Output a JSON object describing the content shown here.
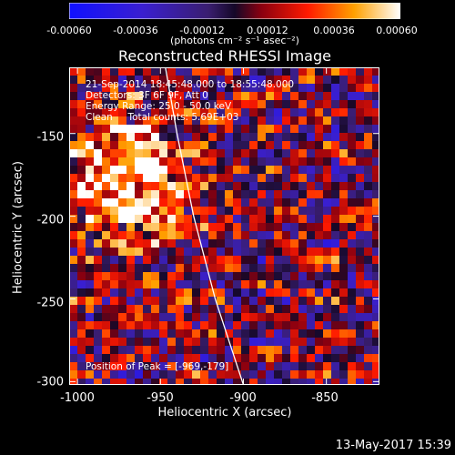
{
  "colorbar": {
    "tick_labels": [
      "-0.00060",
      "-0.00036",
      "-0.00012",
      "0.00012",
      "0.00036",
      "0.00060"
    ],
    "units": "(photons cm⁻² s⁻¹ asec⁻²)"
  },
  "chart_data": {
    "type": "heatmap",
    "title": "Reconstructed RHESSI Image",
    "xlabel": "Heliocentric X (arcsec)",
    "ylabel": "Heliocentric Y (arcsec)",
    "xlim": [
      -1005,
      -818
    ],
    "ylim": [
      -302,
      -110
    ],
    "x_ticks": [
      -1000,
      -950,
      -900,
      -850
    ],
    "y_ticks": [
      -150,
      -200,
      -250,
      -300
    ],
    "colorbar_range": [
      -0.0006,
      0.0006
    ],
    "limb_curve": [
      [
        -947,
        -110
      ],
      [
        -940,
        -150
      ],
      [
        -930,
        -200
      ],
      [
        -917,
        -250
      ],
      [
        -900,
        -302
      ]
    ],
    "peak": [
      -969,
      -179
    ],
    "annotations": [
      "21-Sep-2014 18:45:48.000 to 18:55:48.000",
      "Detectors: 3F 6F 9F, Att 0",
      "Energy Range: 25.0 - 50.0 keV",
      "Clean     Total counts: 5.69E+03",
      "Position of Peak = [-969,-179]"
    ]
  },
  "footer": {
    "date": "13-May-2017 15:39"
  }
}
